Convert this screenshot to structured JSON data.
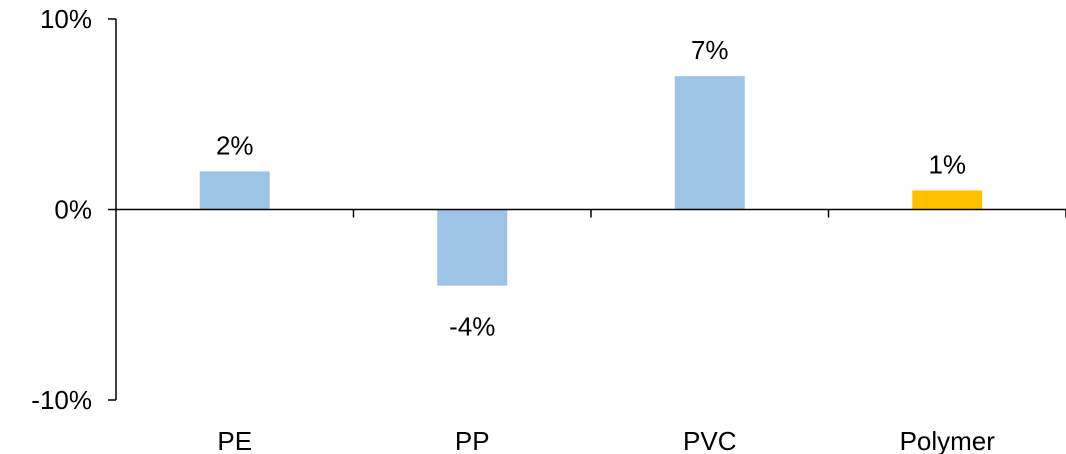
{
  "chart_data": {
    "type": "bar",
    "categories": [
      "PE",
      "PP",
      "PVC",
      "Polymer"
    ],
    "values": [
      2,
      -4,
      7,
      1
    ],
    "data_labels": [
      "2%",
      "-4%",
      "7%",
      "1%"
    ],
    "ylim": [
      -10,
      10
    ],
    "yticks": [
      -10,
      0,
      10
    ],
    "ytick_labels": [
      "-10%",
      "0%",
      "10%"
    ],
    "bar_colors": [
      "#9DC3E6",
      "#9DC3E6",
      "#9DC3E6",
      "#FFC000"
    ],
    "axis_color": "#000000",
    "grid": false,
    "legend": "none",
    "title": "",
    "xlabel": "",
    "ylabel": ""
  }
}
